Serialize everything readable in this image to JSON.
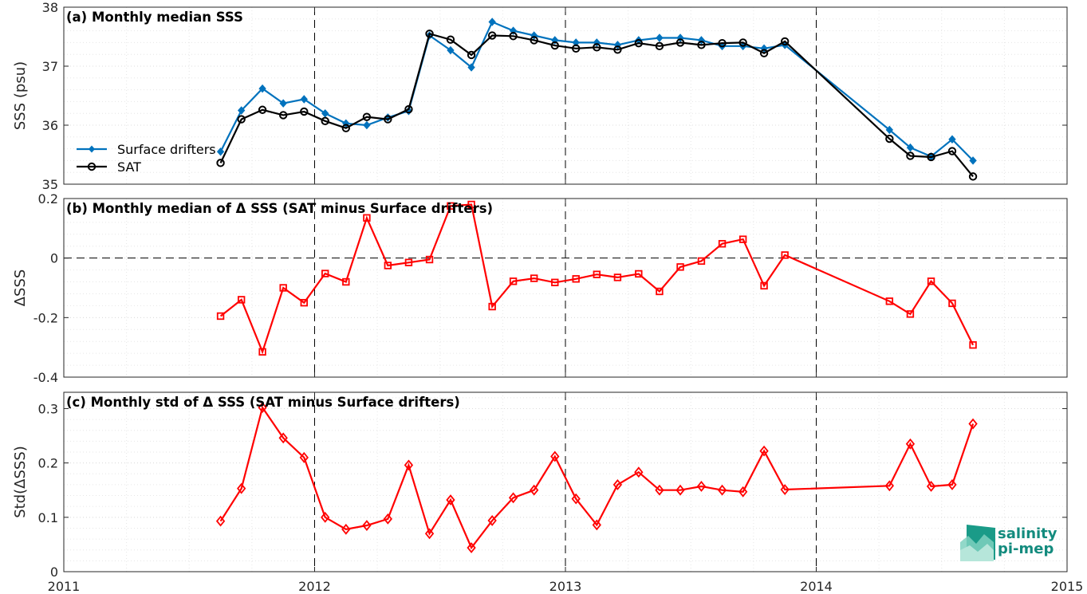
{
  "chart_data": [
    {
      "type": "line",
      "title": "(a) Monthly median SSS",
      "ylabel": "SSS (psu)",
      "xlim": [
        2011,
        2015
      ],
      "ylim": [
        35,
        38
      ],
      "yticks": [
        35,
        36,
        37,
        38
      ],
      "ytick_labels": [
        "35",
        "36",
        "37",
        "38"
      ],
      "grid": "on",
      "legend_placement": "lower-left",
      "x": [
        2011.625,
        2011.708,
        2011.792,
        2011.875,
        2011.958,
        2012.042,
        2012.125,
        2012.208,
        2012.292,
        2012.375,
        2012.458,
        2012.542,
        2012.625,
        2012.708,
        2012.792,
        2012.875,
        2012.958,
        2013.042,
        2013.125,
        2013.208,
        2013.292,
        2013.375,
        2013.458,
        2013.542,
        2013.625,
        2013.708,
        2013.792,
        2013.875,
        2014.292,
        2014.375,
        2014.458,
        2014.542,
        2014.625
      ],
      "series": [
        {
          "name": "Surface drifters",
          "color": "#0072bd",
          "marker": "filled-diamond",
          "values": [
            35.55,
            36.25,
            36.62,
            36.37,
            36.44,
            36.2,
            36.03,
            36.0,
            36.13,
            36.24,
            37.52,
            37.27,
            36.98,
            37.75,
            37.6,
            37.52,
            37.44,
            37.4,
            37.4,
            37.36,
            37.44,
            37.48,
            37.48,
            37.44,
            37.34,
            37.34,
            37.3,
            37.36,
            35.92,
            35.62,
            35.47,
            35.76,
            35.4
          ]
        },
        {
          "name": "SAT",
          "color": "#000000",
          "marker": "open-circle",
          "values": [
            35.36,
            36.1,
            36.26,
            36.17,
            36.23,
            36.07,
            35.95,
            36.14,
            36.1,
            36.27,
            37.55,
            37.45,
            37.19,
            37.52,
            37.51,
            37.44,
            37.35,
            37.3,
            37.32,
            37.28,
            37.39,
            37.34,
            37.4,
            37.36,
            37.39,
            37.4,
            37.22,
            37.42,
            35.77,
            35.48,
            35.46,
            35.56,
            35.13
          ]
        }
      ]
    },
    {
      "type": "line",
      "title": "(b) Monthly median of Δ SSS (SAT minus Surface drifters)",
      "ylabel": "ΔSSS",
      "xlim": [
        2011,
        2015
      ],
      "ylim": [
        -0.4,
        0.2
      ],
      "yticks": [
        -0.4,
        -0.2,
        0,
        0.2
      ],
      "ytick_labels": [
        "-0.4",
        "-0.2",
        "0",
        "0.2"
      ],
      "zero_line": "dashed",
      "grid": "on",
      "x": [
        2011.625,
        2011.708,
        2011.792,
        2011.875,
        2011.958,
        2012.042,
        2012.125,
        2012.208,
        2012.292,
        2012.375,
        2012.458,
        2012.542,
        2012.625,
        2012.708,
        2012.792,
        2012.875,
        2012.958,
        2013.042,
        2013.125,
        2013.208,
        2013.292,
        2013.375,
        2013.458,
        2013.542,
        2013.625,
        2013.708,
        2013.792,
        2013.875,
        2014.292,
        2014.375,
        2014.458,
        2014.542,
        2014.625
      ],
      "series": [
        {
          "color": "#ff0000",
          "marker": "open-square",
          "values": [
            -0.195,
            -0.14,
            -0.315,
            -0.1,
            -0.15,
            -0.052,
            -0.08,
            0.135,
            -0.025,
            -0.015,
            -0.005,
            0.175,
            0.18,
            -0.163,
            -0.078,
            -0.068,
            -0.082,
            -0.07,
            -0.055,
            -0.065,
            -0.053,
            -0.112,
            -0.03,
            -0.01,
            0.048,
            0.063,
            -0.093,
            0.01,
            -0.145,
            -0.188,
            -0.078,
            -0.152,
            -0.292
          ]
        }
      ]
    },
    {
      "type": "line",
      "title": "(c) Monthly std of Δ SSS (SAT minus Surface drifters)",
      "ylabel": "Std(ΔSSS)",
      "xlim": [
        2011,
        2015
      ],
      "ylim": [
        0,
        0.33
      ],
      "yticks": [
        0,
        0.1,
        0.2,
        0.3
      ],
      "ytick_labels": [
        "0",
        "0.1",
        "0.2",
        "0.3"
      ],
      "xlabel": "",
      "xticks": [
        2011,
        2012,
        2013,
        2014,
        2015
      ],
      "xtick_labels": [
        "2011",
        "2012",
        "2013",
        "2014",
        "2015"
      ],
      "grid": "on",
      "x": [
        2011.625,
        2011.708,
        2011.792,
        2011.875,
        2011.958,
        2012.042,
        2012.125,
        2012.208,
        2012.292,
        2012.375,
        2012.458,
        2012.542,
        2012.625,
        2012.708,
        2012.792,
        2012.875,
        2012.958,
        2013.042,
        2013.125,
        2013.208,
        2013.292,
        2013.375,
        2013.458,
        2013.542,
        2013.625,
        2013.708,
        2013.792,
        2013.875,
        2014.292,
        2014.375,
        2014.458,
        2014.542,
        2014.625
      ],
      "series": [
        {
          "color": "#ff0000",
          "marker": "open-diamond",
          "values": [
            0.093,
            0.153,
            0.302,
            0.246,
            0.21,
            0.1,
            0.078,
            0.085,
            0.097,
            0.196,
            0.07,
            0.132,
            0.044,
            0.094,
            0.136,
            0.15,
            0.212,
            0.134,
            0.086,
            0.16,
            0.183,
            0.15,
            0.15,
            0.157,
            0.15,
            0.147,
            0.222,
            0.151,
            0.158,
            0.235,
            0.157,
            0.16,
            0.272
          ]
        }
      ]
    }
  ],
  "year_separators": [
    2012,
    2013,
    2014
  ],
  "logo": {
    "line1": "salinity",
    "line2": "pi-mep",
    "color": "#138b7e"
  }
}
